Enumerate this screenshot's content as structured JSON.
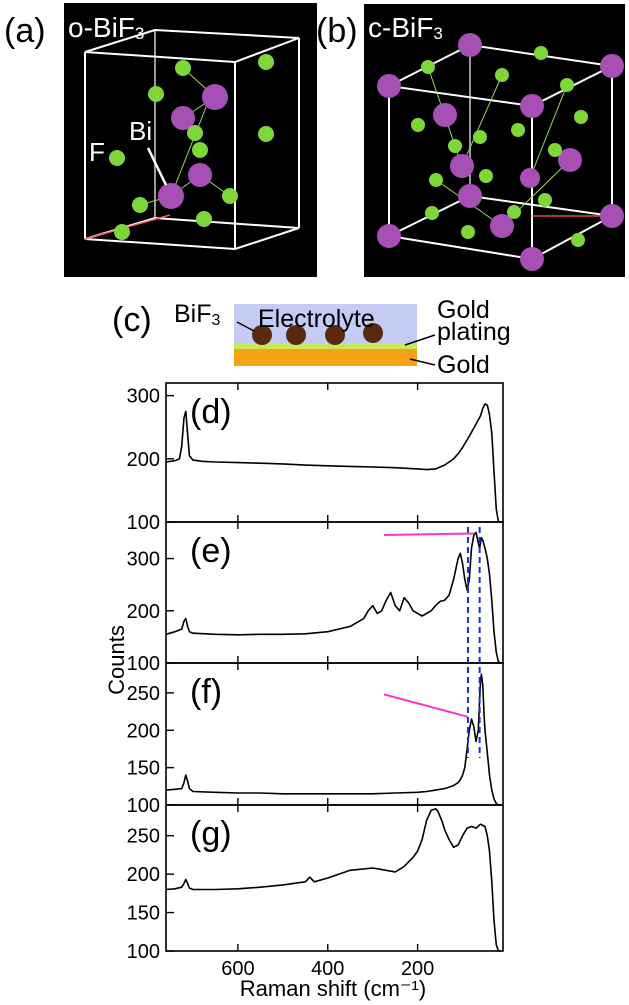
{
  "panels": {
    "a": {
      "label": "(a)",
      "title": "o-BiF",
      "title_sub": "3",
      "atom_f": "F",
      "atom_bi": "Bi"
    },
    "b": {
      "label": "(b)",
      "title": "c-BiF",
      "title_sub": "3"
    },
    "c": {
      "label": "(c)",
      "bif3": "BiF",
      "bif3_sub": "3",
      "electrolyte": "Electrolyte",
      "gold_plating_1": "Gold",
      "gold_plating_2": "plating",
      "gold": "Gold"
    }
  },
  "colors": {
    "bi_atom": "#a64fb5",
    "f_atom": "#7fd63a",
    "crystal_bg": "#000000",
    "electrolyte": "#c4cbf5",
    "gold_plating": "#c9e85a",
    "gold": "#f5a316",
    "particle": "#5a2a10",
    "marker_line": "#ff33cc",
    "dashed_line": "#1a2ecc"
  },
  "chart_data": {
    "type": "line",
    "xlabel": "Raman shift (cm⁻¹)",
    "ylabel": "Counts",
    "x_reversed": true,
    "xlim": [
      760,
      10
    ],
    "x_ticks": [
      600,
      400,
      200
    ],
    "subplots": [
      {
        "label": "(d)",
        "ylim": [
          100,
          320
        ],
        "y_ticks": [
          100,
          200,
          300
        ],
        "series": [
          {
            "x": [
              760,
              740,
              730,
              725,
              720,
              716,
              712,
              708,
              700,
              680,
              650,
              600,
              550,
              500,
              450,
              400,
              350,
              300,
              250,
              200,
              180,
              160,
              140,
              120,
              110,
              100,
              90,
              80,
              70,
              60,
              55,
              50,
              45,
              40,
              35,
              30,
              25,
              20,
              15
            ],
            "y": [
              195,
              197,
              200,
              220,
              265,
              275,
              240,
              205,
              198,
              196,
              195,
              194,
              193,
              192,
              190,
              189,
              188,
              187,
              186,
              184,
              183,
              184,
              190,
              200,
              208,
              218,
              230,
              242,
              255,
              268,
              280,
              287,
              285,
              270,
              240,
              180,
              120,
              100,
              100
            ]
          }
        ]
      },
      {
        "label": "(e)",
        "ylim": [
          100,
          370
        ],
        "y_ticks": [
          100,
          200,
          300
        ],
        "series": [
          {
            "x": [
              760,
              740,
              725,
              720,
              716,
              712,
              708,
              700,
              650,
              600,
              550,
              500,
              450,
              400,
              350,
              320,
              310,
              300,
              290,
              280,
              270,
              260,
              250,
              240,
              230,
              220,
              210,
              200,
              190,
              180,
              170,
              160,
              150,
              140,
              130,
              120,
              110,
              105,
              100,
              95,
              90,
              85,
              80,
              75,
              70,
              65,
              62,
              60,
              58,
              55,
              50,
              45,
              40,
              35,
              30,
              25,
              20,
              15
            ],
            "y": [
              155,
              160,
              165,
              180,
              185,
              170,
              160,
              157,
              155,
              154,
              155,
              155,
              156,
              160,
              170,
              185,
              200,
              210,
              195,
              200,
              220,
              235,
              210,
              200,
              225,
              215,
              200,
              195,
              190,
              195,
              200,
              210,
              218,
              220,
              230,
              260,
              300,
              310,
              290,
              260,
              240,
              260,
              320,
              345,
              350,
              330,
              320,
              330,
              340,
              335,
              320,
              300,
              270,
              220,
              160,
              120,
              102,
              100
            ]
          }
        ]
      },
      {
        "label": "(f)",
        "ylim": [
          100,
          290
        ],
        "y_ticks": [
          100,
          150,
          200,
          250
        ],
        "series": [
          {
            "x": [
              760,
              740,
              725,
              720,
              716,
              712,
              708,
              700,
              650,
              600,
              550,
              500,
              450,
              400,
              350,
              300,
              250,
              200,
              180,
              160,
              140,
              130,
              120,
              110,
              105,
              100,
              95,
              90,
              85,
              80,
              75,
              70,
              65,
              62,
              60,
              58,
              55,
              52,
              50,
              45,
              40,
              35,
              30,
              25,
              20,
              15
            ],
            "y": [
              120,
              121,
              122,
              130,
              140,
              132,
              122,
              118,
              117,
              116,
              116,
              115,
              115,
              115,
              115,
              115,
              116,
              117,
              118,
              120,
              122,
              124,
              126,
              130,
              134,
              140,
              150,
              175,
              200,
              215,
              205,
              185,
              200,
              240,
              265,
              275,
              260,
              220,
              200,
              170,
              140,
              120,
              108,
              102,
              100,
              100
            ]
          }
        ]
      },
      {
        "label": "(g)",
        "ylim": [
          100,
          290
        ],
        "y_ticks": [
          100,
          150,
          200,
          250
        ],
        "series": [
          {
            "x": [
              760,
              740,
              725,
              720,
              716,
              712,
              708,
              700,
              650,
              600,
              550,
              500,
              450,
              440,
              430,
              400,
              350,
              300,
              250,
              230,
              210,
              200,
              190,
              180,
              170,
              160,
              155,
              150,
              145,
              140,
              130,
              120,
              110,
              100,
              90,
              80,
              70,
              60,
              50,
              45,
              40,
              35,
              30,
              25,
              20,
              15
            ],
            "y": [
              180,
              181,
              183,
              188,
              193,
              188,
              182,
              180,
              180,
              181,
              183,
              186,
              190,
              196,
              190,
              195,
              205,
              208,
              203,
              210,
              222,
              230,
              245,
              270,
              283,
              285,
              282,
              275,
              268,
              258,
              245,
              235,
              238,
              250,
              260,
              262,
              260,
              265,
              262,
              250,
              230,
              190,
              140,
              108,
              100,
              100
            ]
          }
        ]
      }
    ],
    "annotations": {
      "dashed_lines_x": [
        88,
        62
      ],
      "arrows": [
        {
          "subplot": "(e)",
          "from": [
            275,
            345
          ],
          "to": [
            75,
            348
          ]
        },
        {
          "subplot": "(f)",
          "from": [
            275,
            248
          ],
          "to": [
            88,
            218
          ]
        }
      ]
    }
  }
}
